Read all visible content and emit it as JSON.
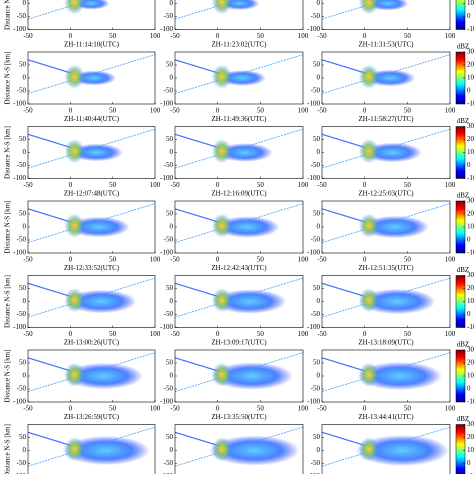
{
  "figure": {
    "ylabel": "Distance N-S [km]",
    "xlim": [
      -50,
      100
    ],
    "xticks": [
      -50,
      0,
      50,
      100
    ],
    "ylim": [
      -100,
      100
    ],
    "yticks": [
      -100,
      -50,
      0,
      50
    ],
    "colorbar": {
      "label": "dBZ",
      "ylim": [
        -10,
        30
      ],
      "yticks": [
        -10,
        0,
        10,
        20,
        30
      ]
    },
    "rows": [
      [
        null,
        null,
        null
      ],
      [
        "ZH-11:14:10(UTC)",
        "ZH-11:23:02(UTC)",
        "ZH-11:31:53(UTC)"
      ],
      [
        "ZH-11:40:44(UTC)",
        "ZH-11:49:36(UTC)",
        "ZH-11:58:27(UTC)"
      ],
      [
        "ZH-12:07:48(UTC)",
        "ZH-12:16:09(UTC)",
        "ZH-12:25:03(UTC)"
      ],
      [
        "ZH-12:33:52(UTC)",
        "ZH-12:42:43(UTC)",
        "ZH-12:51:35(UTC)"
      ],
      [
        "ZH-13:00:26(UTC)",
        "ZH-13:09:17(UTC)",
        "ZH-13:18:09(UTC)"
      ],
      [
        "ZH-13:26:59(UTC)",
        "ZH-13:35:50(UTC)",
        "ZH-13:44:41(UTC)"
      ]
    ]
  }
}
